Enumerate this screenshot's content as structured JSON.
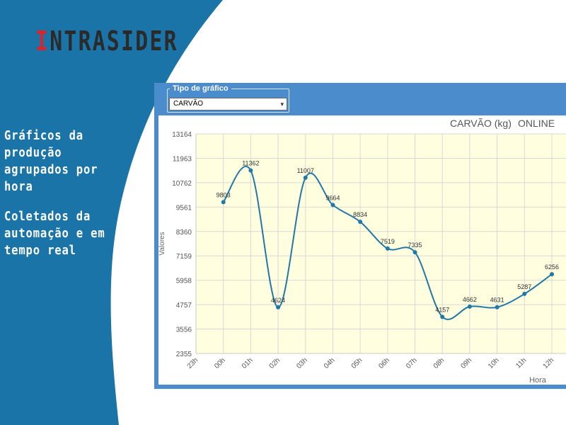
{
  "brand": {
    "first_letter": "I",
    "rest": "NTRASIDER"
  },
  "tagline": {
    "line1": "Gráficos da produção agrupados por hora",
    "line2": "Coletados da automação e em tempo real"
  },
  "colors": {
    "sidebar_blue": "#1b74a8",
    "panel_blue": "#4a8ccc",
    "plot_bg": "#ffffe0",
    "series": "#2178a6",
    "brand_red": "#d8242c"
  },
  "control": {
    "legend": "Tipo de gráfico",
    "selected": "CARVÃO"
  },
  "chart_data": {
    "type": "line",
    "title": "CARVÃO (kg)",
    "status": "ONLINE",
    "xlabel": "Hora",
    "ylabel": "Valores",
    "x": [
      "23h",
      "00h",
      "01h",
      "02h",
      "03h",
      "04h",
      "05h",
      "06h",
      "07h",
      "08h",
      "09h",
      "10h",
      "11h",
      "12h"
    ],
    "y_ticks": [
      2355,
      3556,
      4757,
      5958,
      7159,
      8360,
      9561,
      10762,
      11963,
      13164
    ],
    "ylim": [
      2355,
      13164
    ],
    "grid": true,
    "series": [
      {
        "values": [
          null,
          9803,
          11362,
          4624,
          11007,
          9664,
          8834,
          7519,
          7335,
          4157,
          4662,
          4631,
          5287,
          6256
        ]
      }
    ]
  }
}
